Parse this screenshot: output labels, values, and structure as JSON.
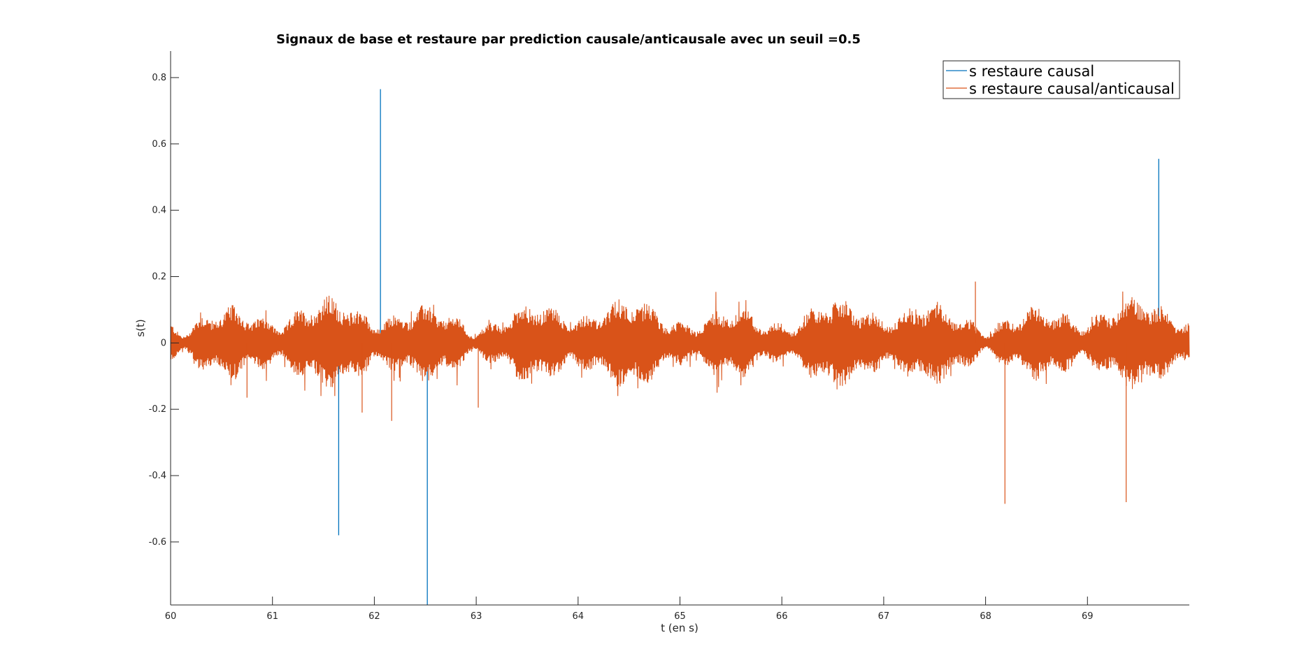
{
  "chart_data": {
    "type": "line",
    "title": "Signaux de base et restaure par prediction causale/anticausale avec un seuil =0.5",
    "xlabel": "t (en s)",
    "ylabel": "s(t)",
    "xlim": [
      60,
      70
    ],
    "ylim": [
      -0.79,
      0.88
    ],
    "xticks": [
      60,
      61,
      62,
      63,
      64,
      65,
      66,
      67,
      68,
      69
    ],
    "xtick_labels": [
      "60",
      "61",
      "62",
      "63",
      "64",
      "65",
      "66",
      "67",
      "68",
      "69"
    ],
    "yticks": [
      -0.6,
      -0.4,
      -0.2,
      0,
      0.2,
      0.4,
      0.6,
      0.8
    ],
    "ytick_labels": [
      "-0.6",
      "-0.4",
      "-0.2",
      "0",
      "0.2",
      "0.4",
      "0.6",
      "0.8"
    ],
    "grid": false,
    "legend_position": "top-right",
    "series": [
      {
        "name": "s restaure causal",
        "color": "#0072BD",
        "spikes": [
          {
            "x": 61.65,
            "y": -0.58
          },
          {
            "x": 62.06,
            "y": 0.765
          },
          {
            "x": 62.52,
            "y": -0.79
          },
          {
            "x": 69.7,
            "y": 0.555
          }
        ]
      },
      {
        "name": "s restaure causal/anticausal",
        "color": "#D95319",
        "noise_band": {
          "x_start": 60,
          "x_end": 70,
          "typical_amplitude": 0.08,
          "max_positive": 0.16,
          "max_negative": -0.16
        },
        "spikes": [
          {
            "x": 60.75,
            "y": -0.165
          },
          {
            "x": 61.88,
            "y": -0.21
          },
          {
            "x": 62.17,
            "y": -0.235
          },
          {
            "x": 63.02,
            "y": -0.195
          },
          {
            "x": 67.9,
            "y": 0.185
          },
          {
            "x": 68.19,
            "y": -0.485
          },
          {
            "x": 69.38,
            "y": -0.48
          }
        ]
      }
    ]
  }
}
